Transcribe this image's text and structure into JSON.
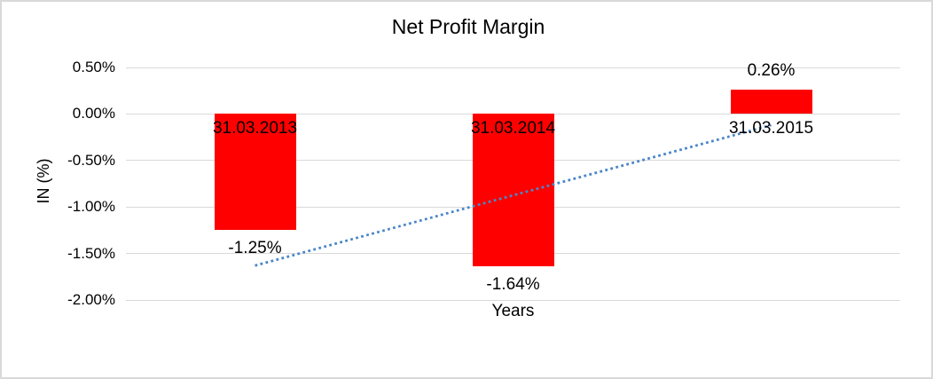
{
  "window": {
    "background_color": "#FFFFFF",
    "border_color": "#D9D9D9"
  },
  "chart_data": {
    "type": "bar",
    "title": "Net Profit Margin",
    "xlabel": "Years",
    "ylabel": "IN (%)",
    "categories": [
      "31.03.2013",
      "31.03.2014",
      "31.03.2015"
    ],
    "values": [
      -1.25,
      -1.64,
      0.26
    ],
    "data_labels": [
      "-1.25%",
      "-1.64%",
      "0.26%"
    ],
    "yticks": [
      {
        "value": 0.5,
        "label": "0.50%"
      },
      {
        "value": 0.0,
        "label": "0.00%"
      },
      {
        "value": -0.5,
        "label": "-0.50%"
      },
      {
        "value": -1.0,
        "label": "-1.00%"
      },
      {
        "value": -1.5,
        "label": "-1.50%"
      },
      {
        "value": -2.0,
        "label": "-2.00%"
      }
    ],
    "ylim": [
      -2.0,
      0.5
    ],
    "grid": true,
    "legend": "none",
    "bar_color": "#FF0000",
    "text_color": "#000000",
    "gridline_color": "#D9D9D9",
    "trendline": {
      "type": "linear",
      "style": "dotted",
      "color": "#4A86C8",
      "start_category_index": 0,
      "end_category_index": 2,
      "start_value_pct": -1.63,
      "end_value_pct": -0.12
    }
  }
}
